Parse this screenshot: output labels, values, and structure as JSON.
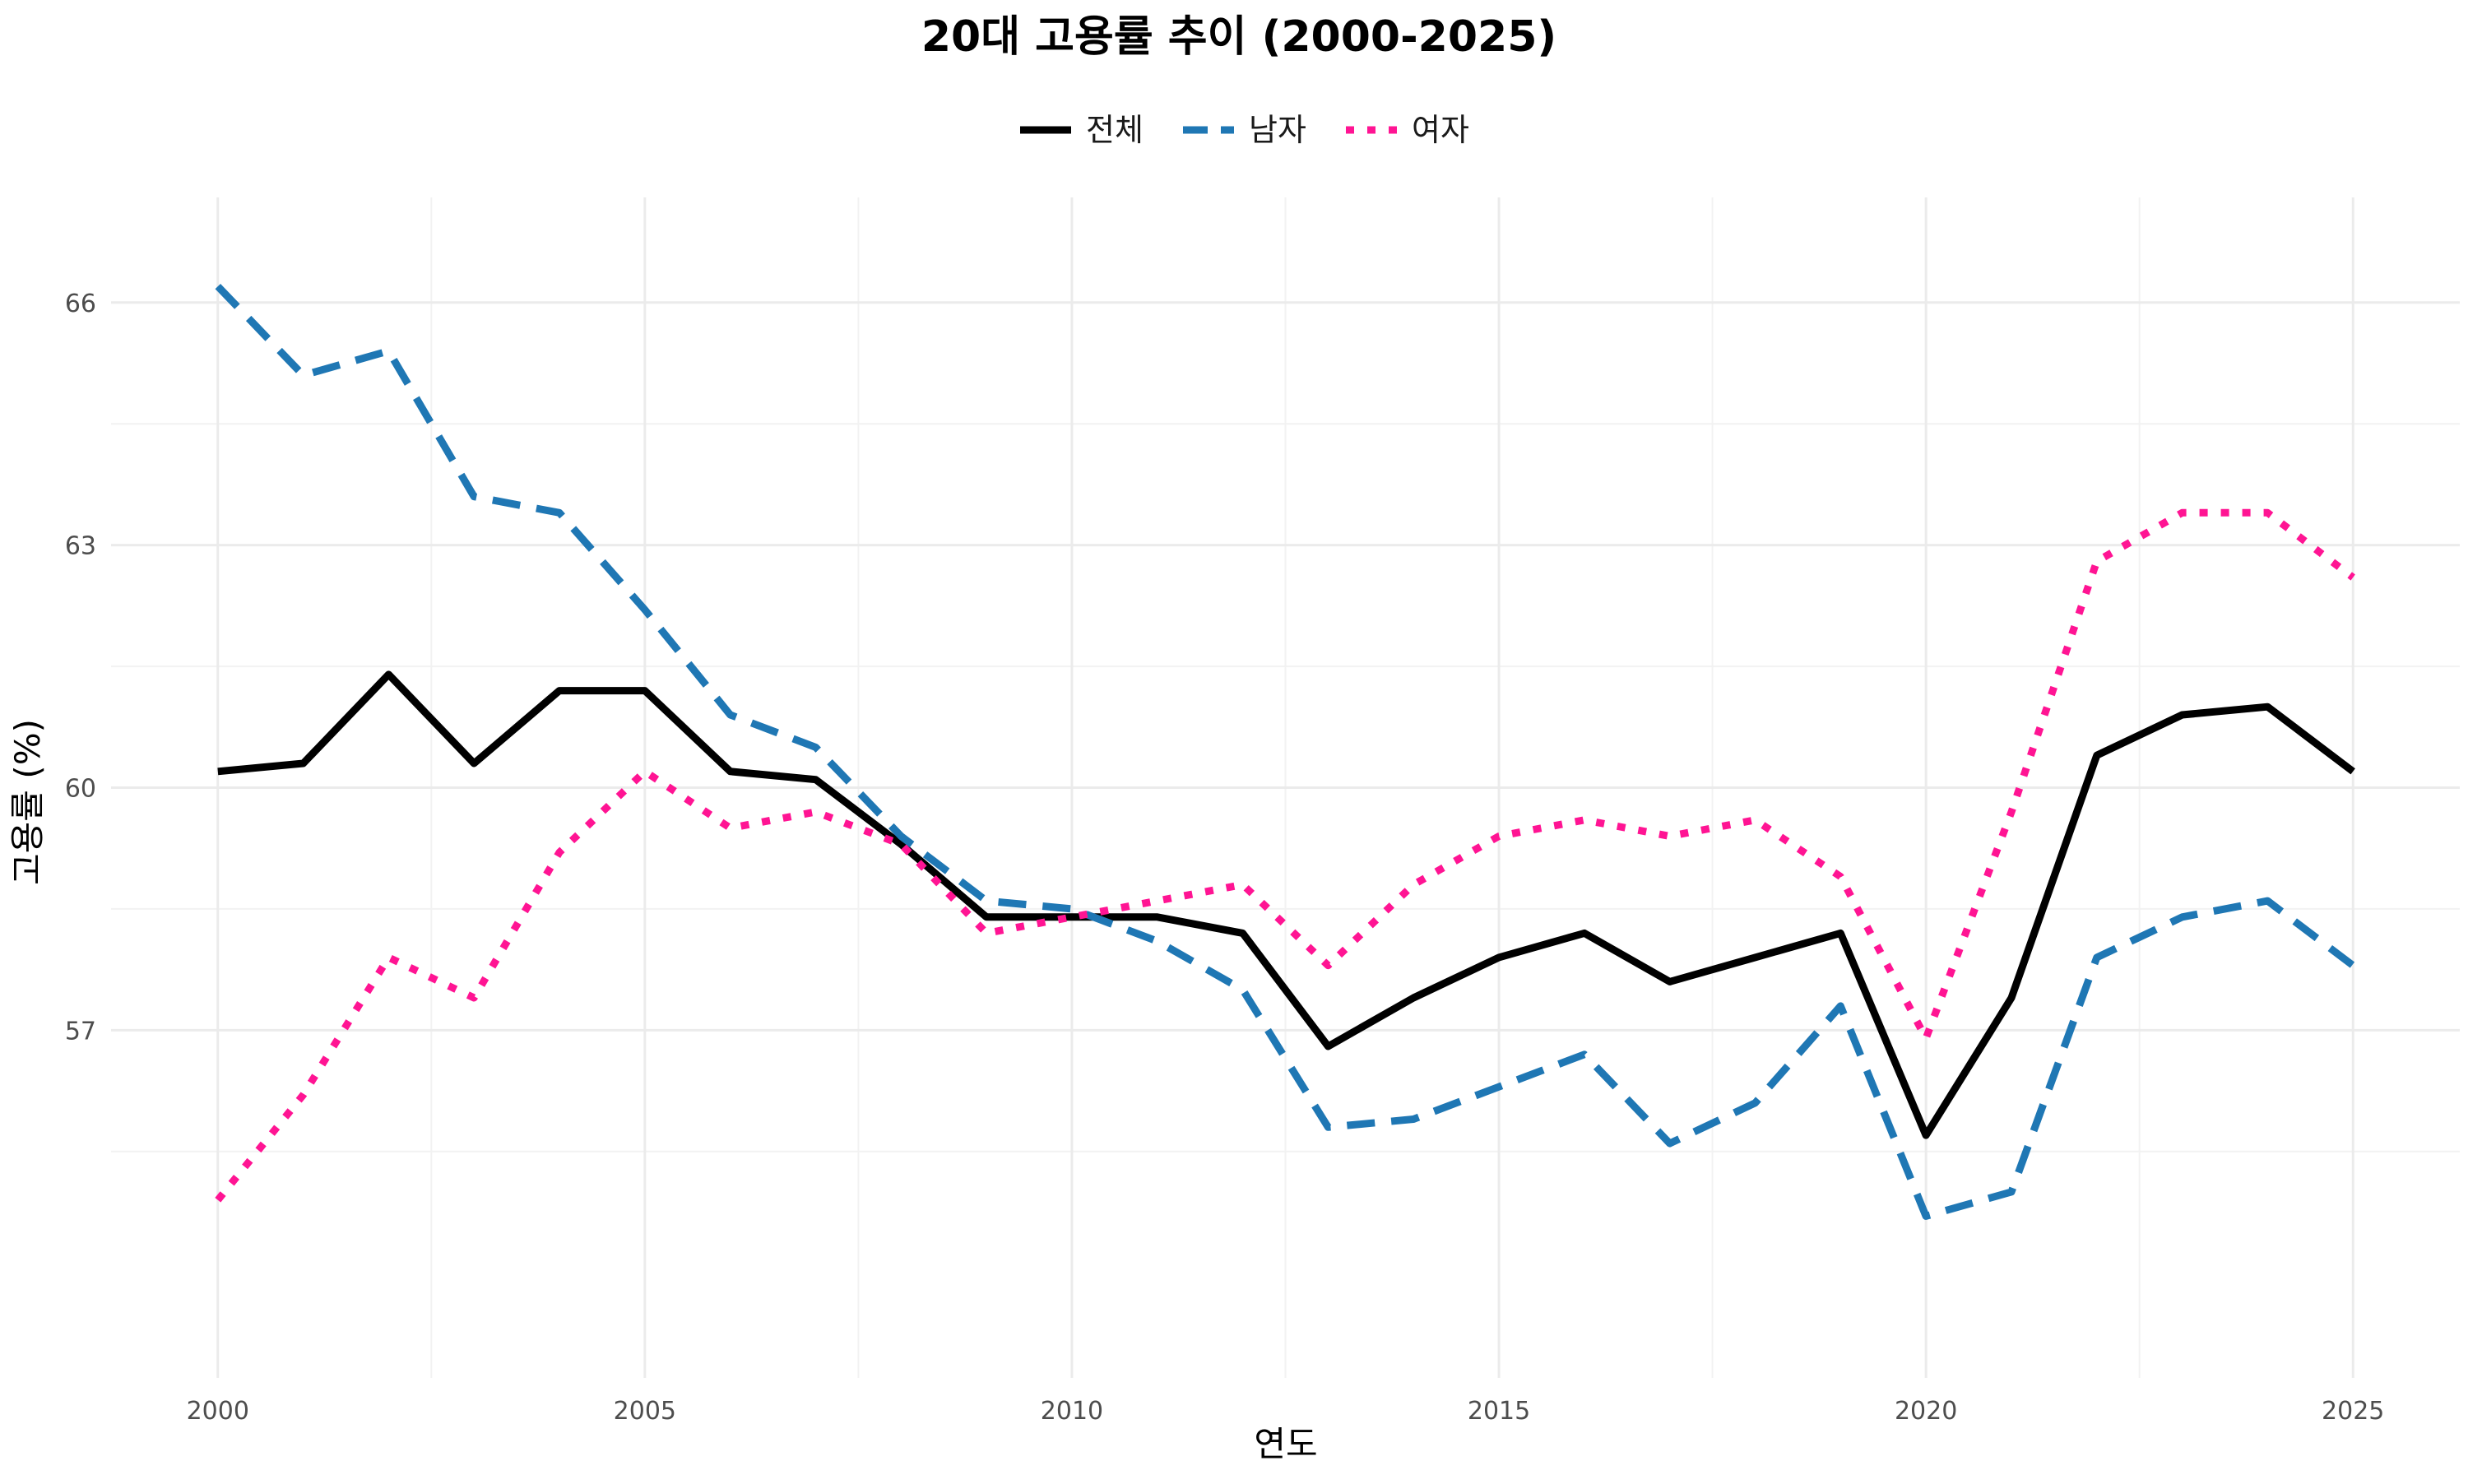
{
  "chart_data": {
    "type": "line",
    "title": "20대 고용률 추이 (2000-2025)",
    "xlabel": "연도",
    "ylabel": "고용률 (%)",
    "x": [
      2000,
      2001,
      2002,
      2003,
      2004,
      2005,
      2006,
      2007,
      2008,
      2009,
      2010,
      2011,
      2012,
      2013,
      2014,
      2015,
      2016,
      2017,
      2018,
      2019,
      2020,
      2021,
      2022,
      2023,
      2024,
      2025
    ],
    "xlim": [
      1998.75,
      2026.25
    ],
    "ylim": [
      52.7,
      67.3
    ],
    "x_ticks": [
      2000,
      2005,
      2010,
      2015,
      2020,
      2025
    ],
    "y_ticks": [
      57,
      60,
      63,
      66
    ],
    "grid": true,
    "legend_position": "top",
    "series": [
      {
        "name": "전체",
        "color": "#000000",
        "dash": "solid",
        "values": [
          60.2,
          60.3,
          61.4,
          60.3,
          61.2,
          61.2,
          60.2,
          60.1,
          59.3,
          58.4,
          58.4,
          58.4,
          58.2,
          56.8,
          57.4,
          57.9,
          58.2,
          57.6,
          57.9,
          58.2,
          55.7,
          57.4,
          60.4,
          60.9,
          61.0,
          60.2
        ]
      },
      {
        "name": "남자",
        "color": "#1f77b4",
        "dash": "dashed",
        "values": [
          66.2,
          65.1,
          65.4,
          63.6,
          63.4,
          62.2,
          60.9,
          60.5,
          59.4,
          58.6,
          58.5,
          58.1,
          57.5,
          55.8,
          55.9,
          56.3,
          56.7,
          55.6,
          56.1,
          57.3,
          54.7,
          55.0,
          57.9,
          58.4,
          58.6,
          57.8
        ]
      },
      {
        "name": "여자",
        "color": "#ff1493",
        "dash": "dotted",
        "values": [
          54.9,
          56.2,
          57.9,
          57.4,
          59.2,
          60.2,
          59.5,
          59.7,
          59.3,
          58.2,
          58.4,
          58.6,
          58.8,
          57.8,
          58.8,
          59.4,
          59.6,
          59.4,
          59.6,
          58.9,
          56.9,
          59.7,
          62.8,
          63.4,
          63.4,
          62.6
        ]
      }
    ]
  }
}
